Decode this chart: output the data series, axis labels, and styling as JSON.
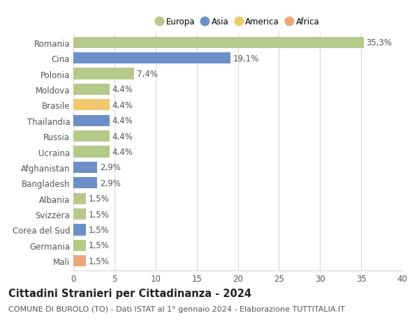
{
  "categories": [
    "Romania",
    "Cina",
    "Polonia",
    "Moldova",
    "Brasile",
    "Thailandia",
    "Russia",
    "Ucraina",
    "Afghanistan",
    "Bangladesh",
    "Albania",
    "Svizzera",
    "Corea del Sud",
    "Germania",
    "Mali"
  ],
  "values": [
    35.3,
    19.1,
    7.4,
    4.4,
    4.4,
    4.4,
    4.4,
    4.4,
    2.9,
    2.9,
    1.5,
    1.5,
    1.5,
    1.5,
    1.5
  ],
  "labels": [
    "35,3%",
    "19,1%",
    "7,4%",
    "4,4%",
    "4,4%",
    "4,4%",
    "4,4%",
    "4,4%",
    "2,9%",
    "2,9%",
    "1,5%",
    "1,5%",
    "1,5%",
    "1,5%",
    "1,5%"
  ],
  "colors": [
    "#b5c98a",
    "#6d8fc7",
    "#b5c98a",
    "#b5c98a",
    "#f0c96e",
    "#6d8fc7",
    "#b5c98a",
    "#b5c98a",
    "#6d8fc7",
    "#6d8fc7",
    "#b5c98a",
    "#b5c98a",
    "#6d8fc7",
    "#b5c98a",
    "#e8a87c"
  ],
  "legend_labels": [
    "Europa",
    "Asia",
    "America",
    "Africa"
  ],
  "legend_colors": [
    "#b5c98a",
    "#6d8fc7",
    "#f0c96e",
    "#e8a87c"
  ],
  "title": "Cittadini Stranieri per Cittadinanza - 2024",
  "subtitle": "COMUNE DI BUROLO (TO) - Dati ISTAT al 1° gennaio 2024 - Elaborazione TUTTITALIA.IT",
  "xlim": [
    0,
    40
  ],
  "xticks": [
    0,
    5,
    10,
    15,
    20,
    25,
    30,
    35,
    40
  ],
  "background_color": "#ffffff",
  "grid_color": "#d8d8d8",
  "bar_height": 0.72,
  "title_fontsize": 10.5,
  "subtitle_fontsize": 8,
  "ytick_fontsize": 8.5,
  "xtick_fontsize": 8.5,
  "label_fontsize": 8.5
}
